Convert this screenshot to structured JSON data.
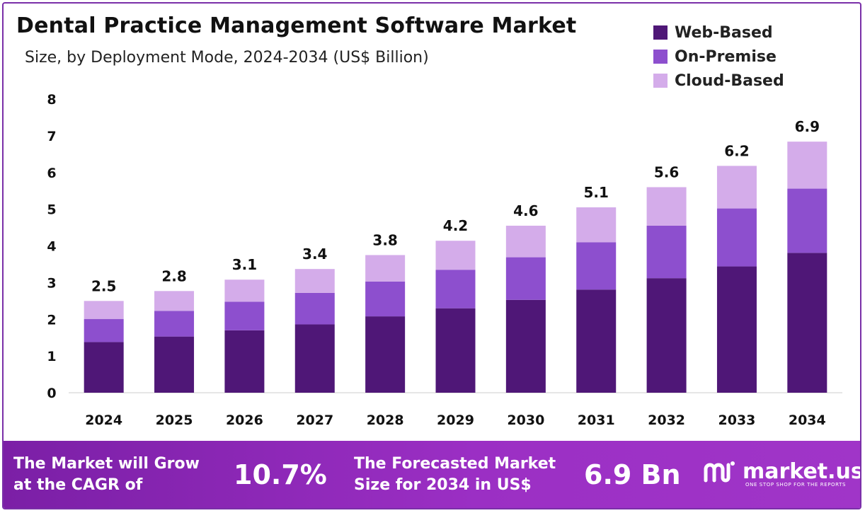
{
  "title": "Dental Practice Management Software Market",
  "subtitle": "Size, by Deployment Mode, 2024-2034 (US$ Billion)",
  "colors": {
    "web_based": "#4f1777",
    "on_premise": "#8d4fce",
    "cloud_based": "#d4acea",
    "footer_bg": "#8e28b8"
  },
  "legend": [
    {
      "label": "Web-Based",
      "color": "#4f1777"
    },
    {
      "label": "On-Premise",
      "color": "#8d4fce"
    },
    {
      "label": "Cloud-Based",
      "color": "#d4acea"
    }
  ],
  "chart_data": {
    "type": "bar",
    "stacked": true,
    "title": "Dental Practice Management Software Market",
    "subtitle": "Size, by Deployment Mode, 2024-2034 (US$ Billion)",
    "categories": [
      "2024",
      "2025",
      "2026",
      "2027",
      "2028",
      "2029",
      "2030",
      "2031",
      "2032",
      "2033",
      "2034"
    ],
    "series": [
      {
        "name": "Web-Based",
        "values": [
          1.38,
          1.53,
          1.7,
          1.86,
          2.08,
          2.3,
          2.53,
          2.81,
          3.12,
          3.44,
          3.81
        ]
      },
      {
        "name": "On-Premise",
        "values": [
          0.63,
          0.7,
          0.78,
          0.86,
          0.95,
          1.05,
          1.16,
          1.29,
          1.43,
          1.58,
          1.75
        ]
      },
      {
        "name": "Cloud-Based",
        "values": [
          0.49,
          0.54,
          0.6,
          0.65,
          0.72,
          0.79,
          0.86,
          0.95,
          1.05,
          1.16,
          1.28
        ]
      }
    ],
    "totals": [
      "2.5",
      "2.8",
      "3.1",
      "3.4",
      "3.8",
      "4.2",
      "4.6",
      "5.1",
      "5.6",
      "6.2",
      "6.9"
    ],
    "ylim": [
      0,
      8
    ],
    "yticks": [
      "0",
      "1",
      "2",
      "3",
      "4",
      "5",
      "6",
      "7",
      "8"
    ],
    "grid": false,
    "legend_position": "top-right"
  },
  "footer": {
    "cagr_text_line1": "The Market will Grow",
    "cagr_text_line2": "at the CAGR of",
    "cagr_value": "10.7%",
    "forecast_text_line1": "The Forecasted Market",
    "forecast_text_line2": "Size for 2034 in US$",
    "forecast_value": "6.9 Bn",
    "brand_name": "market.us",
    "brand_tagline": "ONE STOP SHOP FOR THE REPORTS"
  }
}
